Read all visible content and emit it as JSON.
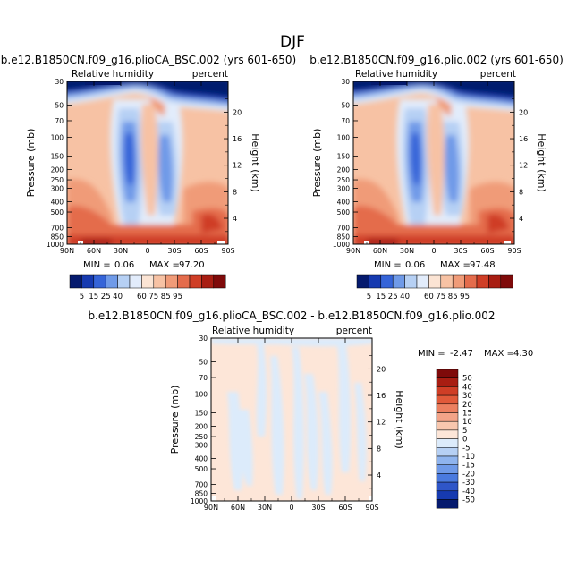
{
  "page_title": "DJF",
  "panels": [
    {
      "title": "b.e12.B1850CN.f09_g16.plioCA_BSC.002 (yrs 601-650)",
      "left_label": "Relative humidity",
      "right_label": "percent",
      "min_label": "MIN =",
      "min_value": "0.06",
      "max_label": "MAX =",
      "max_value": "97.20"
    },
    {
      "title": "b.e12.B1850CN.f09_g16.plio.002 (yrs 601-650)",
      "left_label": "Relative humidity",
      "right_label": "percent",
      "min_label": "MIN =",
      "min_value": "0.06",
      "max_label": "MAX =",
      "max_value": "97.48"
    },
    {
      "title": "b.e12.B1850CN.f09_g16.plioCA_BSC.002 - b.e12.B1850CN.f09_g16.plio.002",
      "left_label": "Relative humidity",
      "right_label": "percent",
      "min_label": "MIN =",
      "min_value": "-2.47",
      "max_label": "MAX =",
      "max_value": "4.30"
    }
  ],
  "chart_data": {
    "type": "heatmap",
    "xlabel": "",
    "ylabel": "Pressure (mb)",
    "ylabel_right": "Height (km)",
    "x_ticks": [
      "90N",
      "60N",
      "30N",
      "0",
      "30S",
      "60S",
      "90S"
    ],
    "x_range": [
      90,
      -90
    ],
    "pressure_ticks": [
      30,
      50,
      70,
      100,
      150,
      200,
      250,
      300,
      400,
      500,
      700,
      850,
      1000
    ],
    "pressure_range": [
      30,
      1000
    ],
    "height_ticks": [
      20,
      16,
      12,
      8,
      4
    ],
    "abs_levels": [
      5,
      15,
      25,
      40,
      60,
      75,
      85,
      95
    ],
    "abs_colors": [
      "#051a6e",
      "#163ab0",
      "#3564d8",
      "#6f9ae8",
      "#b6d0f4",
      "#e2ecfb",
      "#fbe4d4",
      "#f7c2a4",
      "#f09b78",
      "#e46c4c",
      "#cf3e26",
      "#a81d12",
      "#7f0a0a"
    ],
    "abs_colorbar_labels": [
      "5",
      "15",
      "25",
      "40",
      "60",
      "75",
      "85",
      "95"
    ],
    "diff_colorbar_labels": [
      "50",
      "40",
      "30",
      "20",
      "15",
      "10",
      "5",
      "0",
      "-5",
      "-10",
      "-15",
      "-20",
      "-30",
      "-40",
      "-50"
    ],
    "diff_colors": [
      "#7f0a0a",
      "#a81d12",
      "#cf3e26",
      "#e15a3a",
      "#ec8060",
      "#f3a488",
      "#f8c7ae",
      "#fde6d8",
      "#dcebfb",
      "#b6d0f4",
      "#8fb4ee",
      "#6f9ae8",
      "#4a7adf",
      "#2f56c8",
      "#163ab0",
      "#051a6e"
    ]
  }
}
